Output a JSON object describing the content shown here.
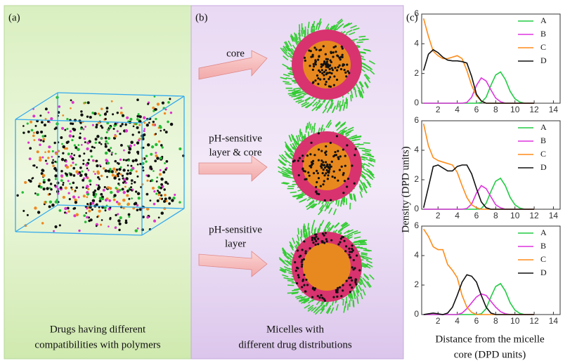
{
  "panels": {
    "a": {
      "label": "(a)",
      "caption": [
        "Drugs having different",
        "compatibilities with polymers"
      ]
    },
    "b": {
      "label": "(b)",
      "arrows": [
        [
          "core"
        ],
        [
          "pH-sensitive",
          "layer & core"
        ],
        [
          "pH-sensitive",
          "layer"
        ]
      ],
      "caption": [
        "Micelles with",
        "different drug distributions"
      ]
    },
    "c": {
      "label": "(c)",
      "ylabel": "Density (DPD units)",
      "xlabel": [
        "Distance from the micelle",
        "core (DPD units)"
      ]
    }
  },
  "chart_data": [
    {
      "type": "line",
      "x": [
        0.5,
        1,
        1.5,
        2,
        2.5,
        3,
        3.5,
        4,
        4.5,
        5,
        5.5,
        6,
        6.5,
        7,
        7.5,
        8,
        8.5,
        9,
        9.5,
        10,
        10.5,
        11,
        11.5,
        12
      ],
      "xlim": [
        0.3,
        14.7
      ],
      "xticks": [
        2,
        4,
        6,
        8,
        10,
        12,
        14
      ],
      "ylim": [
        0,
        6
      ],
      "yticks": [
        0,
        2,
        4,
        6
      ],
      "legend": "upper right",
      "series": [
        {
          "name": "A",
          "color": "#22cc44",
          "values": [
            0,
            0,
            0,
            0,
            0,
            0,
            0,
            0,
            0,
            0,
            0,
            0,
            0.05,
            0.4,
            1.2,
            1.9,
            2.1,
            1.6,
            0.8,
            0.3,
            0.08,
            0,
            0,
            0
          ]
        },
        {
          "name": "B",
          "color": "#dd33dd",
          "values": [
            0,
            0,
            0,
            0,
            0,
            0,
            0,
            0,
            0,
            0.05,
            0.4,
            1.2,
            1.7,
            1.5,
            0.9,
            0.35,
            0.1,
            0,
            0,
            0,
            0,
            0,
            0,
            0
          ]
        },
        {
          "name": "C",
          "color": "#ff8c1a",
          "values": [
            5.7,
            4.5,
            3.5,
            3.2,
            3.0,
            3.0,
            3.1,
            3.2,
            3.0,
            2.2,
            1.2,
            0.5,
            0.15,
            0,
            0,
            0,
            0,
            0,
            0,
            0,
            0,
            0,
            0,
            0
          ]
        },
        {
          "name": "D",
          "color": "#111111",
          "values": [
            2.2,
            3.3,
            3.6,
            3.4,
            3.1,
            2.9,
            2.85,
            2.85,
            2.8,
            2.7,
            1.8,
            0.6,
            0.15,
            0,
            0,
            0,
            0,
            0,
            0,
            0,
            0,
            0,
            0,
            0
          ]
        }
      ]
    },
    {
      "type": "line",
      "x": [
        0.5,
        1,
        1.5,
        2,
        2.5,
        3,
        3.5,
        4,
        4.5,
        5,
        5.5,
        6,
        6.5,
        7,
        7.5,
        8,
        8.5,
        9,
        9.5,
        10,
        10.5,
        11,
        11.5,
        12
      ],
      "xlim": [
        0.3,
        14.7
      ],
      "xticks": [
        2,
        4,
        6,
        8,
        10,
        12,
        14
      ],
      "ylim": [
        0,
        6
      ],
      "yticks": [
        0,
        2,
        4,
        6
      ],
      "legend": "upper right",
      "series": [
        {
          "name": "A",
          "color": "#22cc44",
          "values": [
            0,
            0,
            0,
            0,
            0,
            0,
            0,
            0,
            0,
            0,
            0,
            0,
            0.05,
            0.4,
            1.2,
            1.9,
            2.1,
            1.6,
            0.8,
            0.3,
            0.08,
            0,
            0,
            0
          ]
        },
        {
          "name": "B",
          "color": "#dd33dd",
          "values": [
            0,
            0,
            0,
            0,
            0,
            0,
            0,
            0,
            0,
            0.05,
            0.35,
            1.1,
            1.6,
            1.4,
            0.85,
            0.3,
            0.1,
            0,
            0,
            0,
            0,
            0,
            0,
            0
          ]
        },
        {
          "name": "C",
          "color": "#ff8c1a",
          "values": [
            5.8,
            4.3,
            3.5,
            3.3,
            3.2,
            3.1,
            3.0,
            2.5,
            1.6,
            0.8,
            0.3,
            0.1,
            0,
            0,
            0,
            0,
            0,
            0,
            0,
            0,
            0,
            0,
            0,
            0
          ]
        },
        {
          "name": "D",
          "color": "#111111",
          "values": [
            0.1,
            1.5,
            2.9,
            3.0,
            2.8,
            2.6,
            2.6,
            2.9,
            3.0,
            3.0,
            2.4,
            1.4,
            0.5,
            0.1,
            0,
            0,
            0,
            0,
            0,
            0,
            0,
            0,
            0,
            0
          ]
        }
      ]
    },
    {
      "type": "line",
      "x": [
        0.5,
        1,
        1.5,
        2,
        2.5,
        3,
        3.5,
        4,
        4.5,
        5,
        5.5,
        6,
        6.5,
        7,
        7.5,
        8,
        8.5,
        9,
        9.5,
        10,
        10.5,
        11,
        11.5,
        12
      ],
      "xlim": [
        0.3,
        14.7
      ],
      "xticks": [
        2,
        4,
        6,
        8,
        10,
        12,
        14
      ],
      "ylim": [
        0,
        6
      ],
      "yticks": [
        0,
        2,
        4,
        6
      ],
      "legend": "upper right",
      "series": [
        {
          "name": "A",
          "color": "#22cc44",
          "values": [
            0,
            0,
            0,
            0,
            0,
            0,
            0,
            0,
            0,
            0,
            0,
            0,
            0.05,
            0.4,
            1.2,
            1.9,
            2.1,
            1.6,
            0.8,
            0.3,
            0.08,
            0,
            0,
            0
          ]
        },
        {
          "name": "B",
          "color": "#dd33dd",
          "values": [
            0,
            0,
            0,
            0,
            0,
            0,
            0,
            0,
            0.1,
            0.4,
            0.8,
            1.2,
            1.4,
            1.3,
            0.9,
            0.5,
            0.2,
            0.05,
            0,
            0,
            0,
            0,
            0,
            0
          ]
        },
        {
          "name": "C",
          "color": "#ff8c1a",
          "values": [
            5.8,
            5.3,
            4.6,
            4.4,
            4.4,
            3.4,
            3.0,
            2.5,
            1.3,
            0.5,
            0.15,
            0,
            0,
            0,
            0,
            0,
            0,
            0,
            0,
            0,
            0,
            0,
            0,
            0
          ]
        },
        {
          "name": "D",
          "color": "#111111",
          "values": [
            0,
            0.05,
            0.1,
            0.05,
            0,
            0.1,
            0.5,
            1.3,
            2.2,
            2.7,
            2.6,
            2.2,
            1.3,
            0.5,
            0.1,
            0,
            0,
            0,
            0,
            0,
            0,
            0,
            0,
            0
          ]
        }
      ]
    }
  ]
}
